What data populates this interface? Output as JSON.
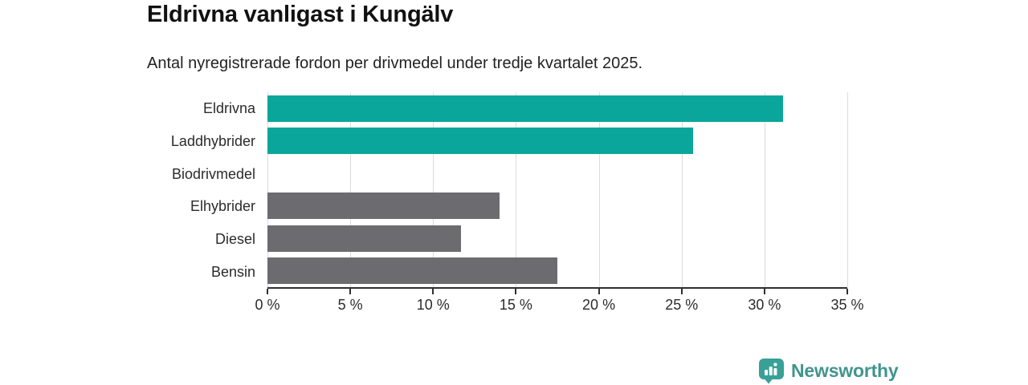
{
  "header": {
    "title": "Eldrivna vanligast i Kungälv",
    "subtitle": "Antal nyregistrerade fordon per drivmedel under tredje kvartalet 2025."
  },
  "chart_data": {
    "type": "bar",
    "orientation": "horizontal",
    "title": "Eldrivna vanligast i Kungälv",
    "subtitle": "Antal nyregistrerade fordon per drivmedel under tredje kvartalet 2025.",
    "categories": [
      "Eldrivna",
      "Laddhybrider",
      "Biodrivmedel",
      "Elhybrider",
      "Diesel",
      "Bensin"
    ],
    "values": [
      31.1,
      25.7,
      0,
      14.0,
      11.7,
      17.5
    ],
    "bar_colors": [
      "#0aa69c",
      "#0aa69c",
      "#6c6c70",
      "#6c6c70",
      "#6c6c70",
      "#6c6c70"
    ],
    "xlabel": "",
    "ylabel": "",
    "xlim": [
      0,
      35
    ],
    "x_tick_values": [
      0,
      5,
      10,
      15,
      20,
      25,
      30,
      35
    ],
    "x_tick_labels": [
      "0 %",
      "5 %",
      "10 %",
      "15 %",
      "20 %",
      "25 %",
      "30 %",
      "35 %"
    ],
    "grid": true,
    "legend": "none"
  },
  "colors": {
    "highlight": "#0aa69c",
    "neutral": "#6c6c70",
    "gridline": "#dcdcdc",
    "axis": "#303030",
    "brand": "#42948e",
    "brand_icon": "#38a096"
  },
  "footer": {
    "brand_name": "Newsworthy",
    "brand_icon": "bar-chart-bubble-icon"
  }
}
